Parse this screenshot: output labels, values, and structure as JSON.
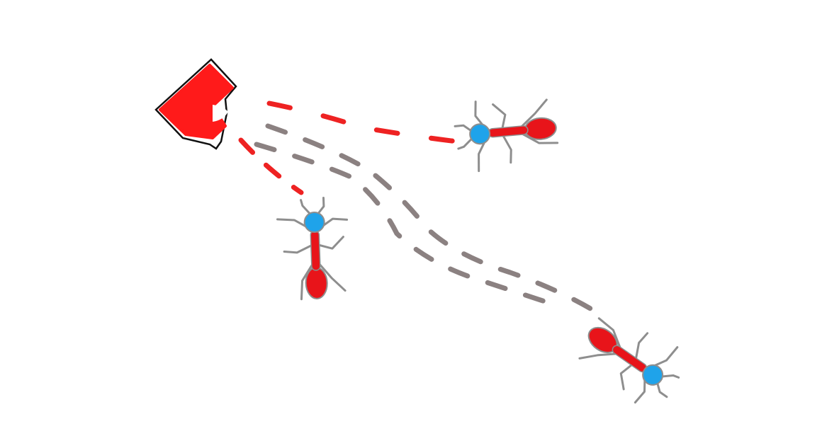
{
  "colors": {
    "background": "#ffffff",
    "nest": "#ff1a1a",
    "nest_outline": "#111111",
    "ant_body": "#e8141a",
    "ant_head": "#1fa3ea",
    "ant_legs": "#8e8e8e",
    "red_trail": "#ee2222",
    "grey_trail": "#8b8181"
  },
  "diagram": {
    "nest_icon": "nest-icon",
    "ant_icon": "ant-icon",
    "ant_count": 3,
    "trails": [
      {
        "name": "red-trail-to-ant-upper",
        "color": "red"
      },
      {
        "name": "red-trail-to-ant-lower-left",
        "color": "red"
      },
      {
        "name": "grey-trail-upper",
        "color": "grey"
      },
      {
        "name": "grey-trail-lower",
        "color": "grey"
      }
    ]
  }
}
